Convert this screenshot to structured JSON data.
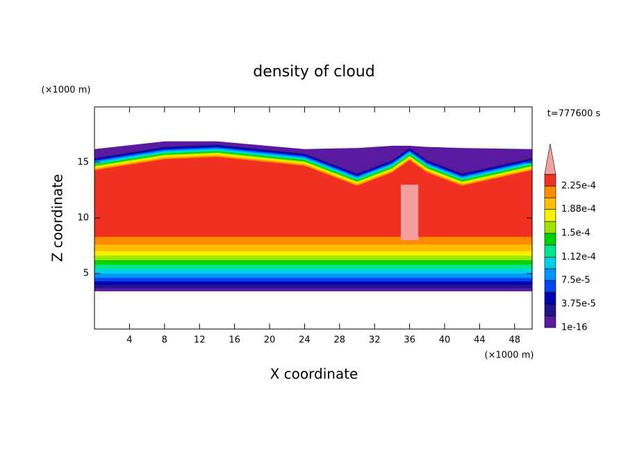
{
  "chart_data": {
    "type": "contour",
    "title": "density of cloud",
    "x_label": "X coordinate",
    "y_label": "Z coordinate",
    "x_unit": "(×1000 m)",
    "y_unit": "(×1000 m)",
    "annotation": "t=777600 s",
    "xlim": [
      0,
      50
    ],
    "ylim": [
      0,
      20
    ],
    "xticks": [
      4,
      8,
      12,
      16,
      20,
      24,
      28,
      32,
      36,
      40,
      44,
      48
    ],
    "yticks": [
      5,
      10,
      15
    ],
    "colorbar": {
      "levels": [
        1e-16,
        1.875e-05,
        {
          "value": 3.75e-05,
          "label": "3.75e-5"
        },
        5.625e-05,
        {
          "value": 7.5e-05,
          "label": "7.5e-5"
        },
        9.375e-05,
        {
          "value": 0.000112,
          "label": "1.12e-4"
        },
        0.00013125,
        {
          "value": 0.00015,
          "label": "1.5e-4"
        },
        0.00016875,
        {
          "value": 0.000188,
          "label": "1.88e-4"
        },
        0.00020625,
        {
          "value": 0.000225,
          "label": "2.25e-4"
        },
        0.00024375
      ],
      "colors": [
        "#5a1aa0",
        "#1e148c",
        "#0000b4",
        "#0046f0",
        "#0096ff",
        "#00d2e6",
        "#00e68c",
        "#00d200",
        "#a0e600",
        "#f5f000",
        "#ffbe00",
        "#ff8c00",
        "#f03020"
      ],
      "extension_color": "#f5a0a0"
    },
    "profile_x": [
      0,
      8,
      14,
      24,
      30,
      34,
      36,
      38,
      42,
      50
    ],
    "bands": [
      {
        "bottom": 3.4,
        "top": [
          16.2,
          16.9,
          16.9,
          16.2,
          16.3,
          16.5,
          16.5,
          16.4,
          16.3,
          16.2
        ]
      },
      {
        "bottom": 3.7,
        "top": [
          15.4,
          16.4,
          16.6,
          15.8,
          14.0,
          15.2,
          16.3,
          15.2,
          14.0,
          15.4
        ]
      },
      {
        "bottom": 4.0,
        "top": [
          15.3,
          16.3,
          16.5,
          15.7,
          13.9,
          15.1,
          16.2,
          15.1,
          13.9,
          15.3
        ]
      },
      {
        "bottom": 4.3,
        "top": [
          15.2,
          16.2,
          16.4,
          15.6,
          13.8,
          15.0,
          16.1,
          15.0,
          13.8,
          15.2
        ]
      },
      {
        "bottom": 4.6,
        "top": [
          15.1,
          16.1,
          16.3,
          15.5,
          13.7,
          14.9,
          16.0,
          14.9,
          13.7,
          15.1
        ]
      },
      {
        "bottom": 5.0,
        "top": [
          15.0,
          16.0,
          16.2,
          15.4,
          13.6,
          14.8,
          15.9,
          14.8,
          13.6,
          15.0
        ]
      },
      {
        "bottom": 5.4,
        "top": [
          14.9,
          15.9,
          16.1,
          15.3,
          13.5,
          14.7,
          15.8,
          14.7,
          13.5,
          14.9
        ]
      },
      {
        "bottom": 5.8,
        "top": [
          14.8,
          15.8,
          16.0,
          15.2,
          13.4,
          14.6,
          15.7,
          14.6,
          13.4,
          14.8
        ]
      },
      {
        "bottom": 6.2,
        "top": [
          14.7,
          15.7,
          15.9,
          15.1,
          13.3,
          14.5,
          15.6,
          14.5,
          13.3,
          14.7
        ]
      },
      {
        "bottom": 6.6,
        "top": [
          14.6,
          15.6,
          15.8,
          15.0,
          13.2,
          14.4,
          15.5,
          14.4,
          13.2,
          14.6
        ]
      },
      {
        "bottom": 7.0,
        "top": [
          14.5,
          15.5,
          15.7,
          14.9,
          13.1,
          14.3,
          15.4,
          14.3,
          13.1,
          14.5
        ]
      },
      {
        "bottom": 7.6,
        "top": [
          14.4,
          15.4,
          15.6,
          14.8,
          13.0,
          14.2,
          15.3,
          14.2,
          13.0,
          14.4
        ]
      },
      {
        "bottom": 8.3,
        "top": [
          14.3,
          15.3,
          15.5,
          14.7,
          12.9,
          14.1,
          15.2,
          14.1,
          12.9,
          14.3
        ]
      }
    ],
    "core": {
      "x": [
        35,
        37
      ],
      "z": [
        8,
        13
      ]
    }
  }
}
